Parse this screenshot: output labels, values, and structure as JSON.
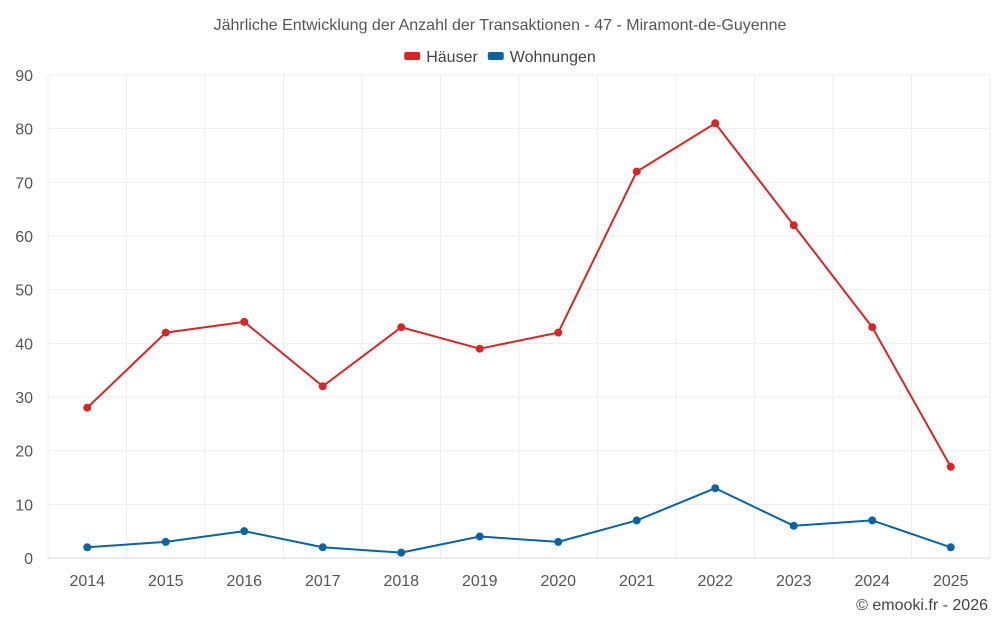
{
  "chart_data": {
    "type": "line",
    "title": "Jährliche Entwicklung der Anzahl der Transaktionen - 47 - Miramont-de-Guyenne",
    "categories": [
      "2014",
      "2015",
      "2016",
      "2017",
      "2018",
      "2019",
      "2020",
      "2021",
      "2022",
      "2023",
      "2024",
      "2025"
    ],
    "series": [
      {
        "name": "Häuser",
        "color": "#d62728",
        "values": [
          28,
          42,
          44,
          32,
          43,
          39,
          42,
          72,
          81,
          62,
          43,
          17
        ]
      },
      {
        "name": "Wohnungen",
        "color": "#0a64a0",
        "values": [
          2,
          3,
          5,
          2,
          1,
          4,
          3,
          7,
          13,
          6,
          7,
          2
        ]
      }
    ],
    "ylim": [
      0,
      90
    ],
    "yticks": [
      0,
      10,
      20,
      30,
      40,
      50,
      60,
      70,
      80,
      90
    ],
    "xlabel": "",
    "ylabel": "",
    "grid": true,
    "legend_position": "top-center"
  },
  "footer": {
    "copyright": "© emooki.fr - 2026"
  }
}
